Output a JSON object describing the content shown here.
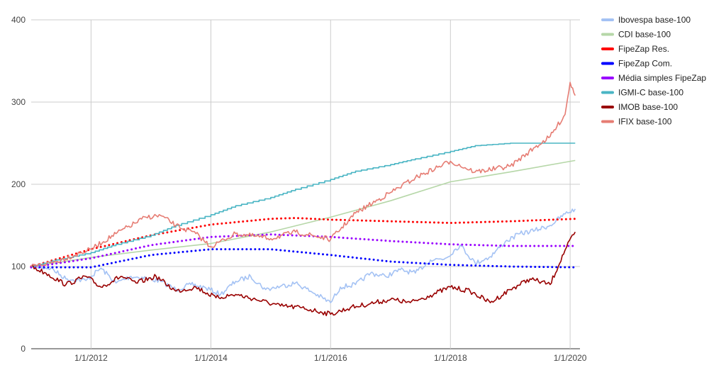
{
  "chart_data": {
    "type": "line",
    "title": "",
    "xlabel": "",
    "ylabel": "",
    "ylim": [
      0,
      400
    ],
    "xlim": [
      "2011-01-01",
      "2020-03-01"
    ],
    "y_ticks": [
      "0",
      "100",
      "200",
      "300",
      "400"
    ],
    "x_ticks": [
      {
        "date": "2012-01-01",
        "label": "1/1/2012"
      },
      {
        "date": "2014-01-01",
        "label": "1/1/2014"
      },
      {
        "date": "2016-01-01",
        "label": "1/1/2016"
      },
      {
        "date": "2018-01-01",
        "label": "1/1/2018"
      },
      {
        "date": "2020-01-01",
        "label": "1/1/2020"
      }
    ],
    "grid": true,
    "legend_position": "right",
    "series": [
      {
        "name": "Ibovespa base-100",
        "color": "#a4c2f4",
        "style": "solid",
        "x": [
          "2011-01-01",
          "2011-05-01",
          "2011-08-01",
          "2011-12-01",
          "2012-03-01",
          "2012-06-01",
          "2012-09-01",
          "2012-12-01",
          "2013-03-01",
          "2013-06-01",
          "2013-09-01",
          "2013-12-01",
          "2014-03-01",
          "2014-06-01",
          "2014-09-01",
          "2014-12-01",
          "2015-03-01",
          "2015-06-01",
          "2015-09-01",
          "2016-01-01",
          "2016-03-01",
          "2016-06-01",
          "2016-09-01",
          "2016-12-01",
          "2017-03-01",
          "2017-06-01",
          "2017-09-01",
          "2017-12-01",
          "2018-03-01",
          "2018-06-01",
          "2018-09-01",
          "2018-12-01",
          "2019-03-01",
          "2019-06-01",
          "2019-09-01",
          "2019-12-01",
          "2020-02-01"
        ],
        "y": [
          100,
          98,
          85,
          83,
          98,
          80,
          88,
          86,
          82,
          72,
          78,
          74,
          66,
          82,
          88,
          72,
          76,
          80,
          70,
          56,
          75,
          78,
          92,
          88,
          96,
          92,
          108,
          110,
          126,
          104,
          112,
          130,
          140,
          144,
          150,
          164,
          170
        ]
      },
      {
        "name": "CDI base-100",
        "color": "#b6d7a8",
        "style": "solid",
        "x": [
          "2011-01-01",
          "2012-01-01",
          "2013-01-01",
          "2014-01-01",
          "2015-01-01",
          "2016-01-01",
          "2017-01-01",
          "2018-01-01",
          "2019-01-01",
          "2020-02-01"
        ],
        "y": [
          100,
          111,
          120,
          128,
          142,
          160,
          180,
          203,
          215,
          229
        ]
      },
      {
        "name": "FipeZap Res.",
        "color": "#ff0000",
        "style": "dotted",
        "x": [
          "2011-01-01",
          "2012-01-01",
          "2013-01-01",
          "2014-01-01",
          "2015-01-01",
          "2015-06-01",
          "2016-01-01",
          "2017-01-01",
          "2018-01-01",
          "2019-01-01",
          "2020-02-01"
        ],
        "y": [
          100,
          121,
          138,
          151,
          158,
          159,
          157,
          155,
          153,
          155,
          158
        ]
      },
      {
        "name": "FipeZap Com.",
        "color": "#0000ff",
        "style": "dotted",
        "x": [
          "2011-01-01",
          "2012-01-01",
          "2013-01-01",
          "2014-01-01",
          "2015-01-01",
          "2016-01-01",
          "2017-01-01",
          "2018-01-01",
          "2019-01-01",
          "2020-02-01"
        ],
        "y": [
          99,
          99,
          114,
          121,
          121,
          114,
          106,
          102,
          100,
          99
        ]
      },
      {
        "name": "Média simples FipeZap",
        "color": "#9900ff",
        "style": "dotted",
        "x": [
          "2011-01-01",
          "2012-01-01",
          "2013-01-01",
          "2014-01-01",
          "2015-01-01",
          "2016-01-01",
          "2017-01-01",
          "2018-01-01",
          "2019-01-01",
          "2020-02-01"
        ],
        "y": [
          99,
          110,
          126,
          136,
          139,
          136,
          131,
          127,
          125,
          125
        ]
      },
      {
        "name": "IGMI-C base-100",
        "color": "#4ab5c4",
        "style": "step",
        "x": [
          "2011-01-01",
          "2011-06-01",
          "2012-01-01",
          "2012-06-01",
          "2013-01-01",
          "2013-06-01",
          "2014-01-01",
          "2014-06-01",
          "2015-01-01",
          "2015-06-01",
          "2016-01-01",
          "2016-06-01",
          "2017-01-01",
          "2017-06-01",
          "2018-01-01",
          "2018-06-01",
          "2019-01-01",
          "2019-06-01",
          "2020-02-01"
        ],
        "y": [
          100,
          108,
          117,
          127,
          138,
          150,
          163,
          174,
          184,
          194,
          206,
          216,
          224,
          231,
          240,
          247,
          250,
          250,
          250
        ]
      },
      {
        "name": "IMOB base-100",
        "color": "#990000",
        "style": "solid",
        "x": [
          "2011-01-01",
          "2011-04-01",
          "2011-08-01",
          "2011-12-01",
          "2012-03-01",
          "2012-07-01",
          "2012-10-01",
          "2013-02-01",
          "2013-06-01",
          "2013-10-01",
          "2014-02-01",
          "2014-06-01",
          "2014-10-01",
          "2015-03-01",
          "2015-07-01",
          "2015-11-01",
          "2016-01-01",
          "2016-05-01",
          "2016-09-01",
          "2017-01-01",
          "2017-05-01",
          "2017-09-01",
          "2018-01-01",
          "2018-05-01",
          "2018-09-01",
          "2019-01-01",
          "2019-05-01",
          "2019-09-01",
          "2019-12-01",
          "2020-02-01"
        ],
        "y": [
          100,
          92,
          78,
          88,
          75,
          88,
          80,
          88,
          70,
          75,
          62,
          66,
          60,
          52,
          50,
          45,
          42,
          50,
          55,
          60,
          56,
          65,
          75,
          70,
          56,
          72,
          85,
          78,
          120,
          142
        ]
      },
      {
        "name": "IFIX base-100",
        "color": "#e67c73",
        "style": "solid",
        "x": [
          "2011-01-01",
          "2011-06-01",
          "2012-01-01",
          "2012-06-01",
          "2012-12-01",
          "2013-03-01",
          "2013-06-01",
          "2013-10-01",
          "2014-01-01",
          "2014-06-01",
          "2015-01-01",
          "2015-06-01",
          "2016-01-01",
          "2016-06-01",
          "2017-01-01",
          "2017-06-01",
          "2018-01-01",
          "2018-06-01",
          "2019-01-01",
          "2019-06-01",
          "2019-09-01",
          "2019-12-01",
          "2020-01-01",
          "2020-02-01"
        ],
        "y": [
          100,
          106,
          121,
          140,
          160,
          162,
          150,
          140,
          124,
          140,
          134,
          142,
          133,
          165,
          190,
          208,
          228,
          215,
          222,
          245,
          258,
          285,
          324,
          308
        ]
      }
    ]
  }
}
